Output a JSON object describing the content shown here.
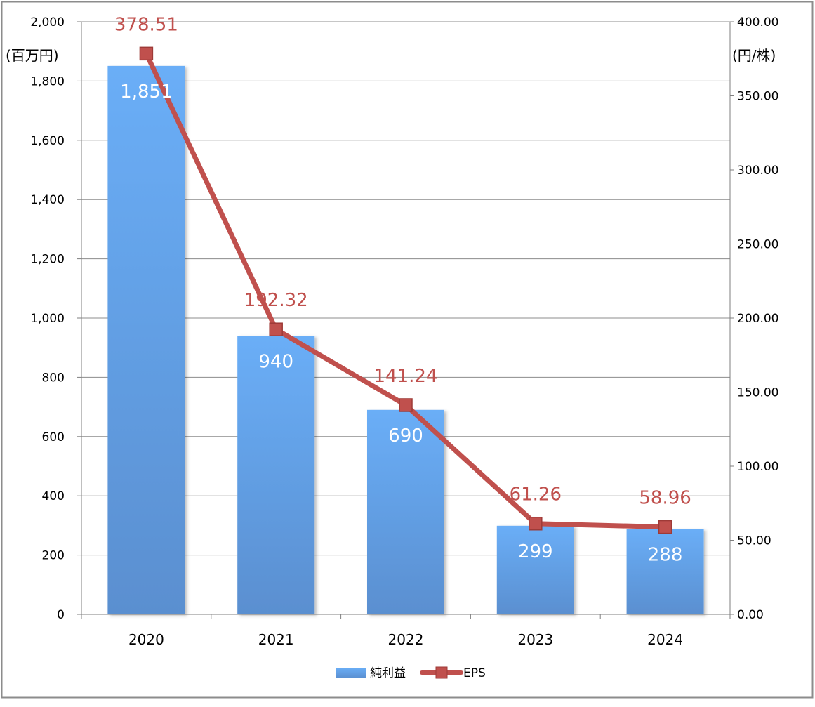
{
  "chart_data": {
    "type": "bar",
    "categories": [
      "2020",
      "2021",
      "2022",
      "2023",
      "2024"
    ],
    "series": [
      {
        "name": "純利益",
        "type": "bar",
        "axis": "left",
        "values": [
          1851,
          940,
          690,
          299,
          288
        ],
        "labels": [
          "1,851",
          "940",
          "690",
          "299",
          "288"
        ],
        "color": "#5b9bd5"
      },
      {
        "name": "EPS",
        "type": "line",
        "axis": "right",
        "values": [
          378.51,
          192.32,
          141.24,
          61.26,
          58.96
        ],
        "labels": [
          "378.51",
          "192.32",
          "141.24",
          "61.26",
          "58.96"
        ],
        "color": "#c0504d"
      }
    ],
    "y_left": {
      "unit": "(百万円)",
      "range": [
        0,
        2000
      ],
      "ticks": [
        "0",
        "200",
        "400",
        "600",
        "800",
        "1,000",
        "1,200",
        "1,400",
        "1,600",
        "1,800",
        "2,000"
      ]
    },
    "y_right": {
      "unit": "(円/株)",
      "range": [
        0,
        400
      ],
      "ticks": [
        "0.00",
        "50.00",
        "100.00",
        "150.00",
        "200.00",
        "250.00",
        "300.00",
        "350.00",
        "400.00"
      ]
    },
    "grid": true,
    "legend": "bottom"
  }
}
